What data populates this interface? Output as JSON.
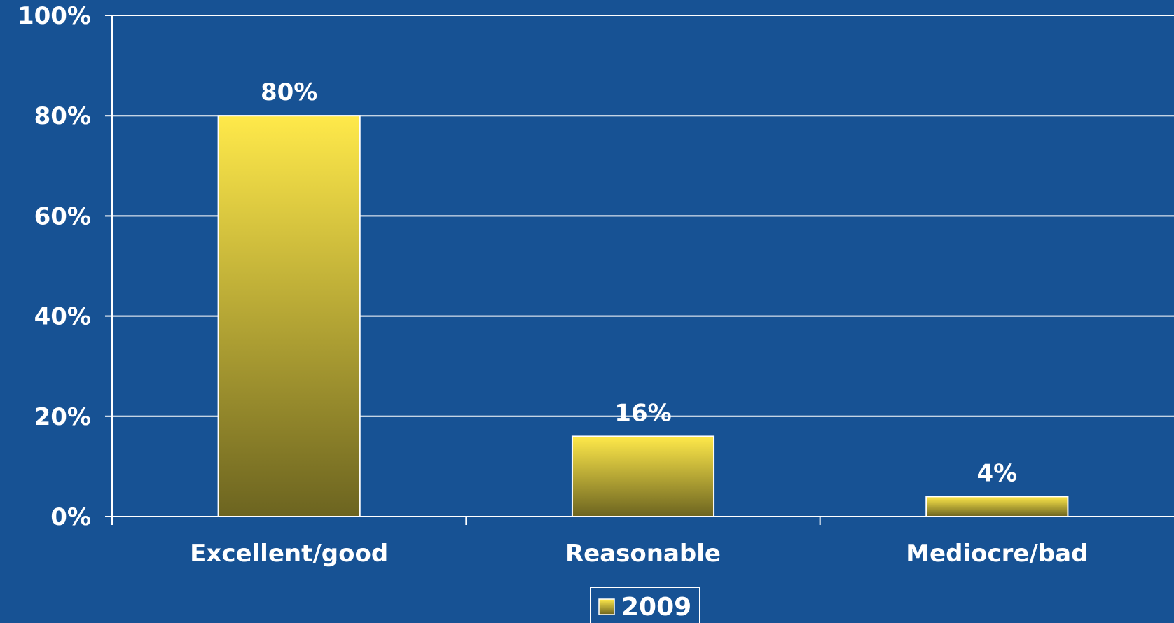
{
  "chart_data": {
    "type": "bar",
    "categories": [
      "Excellent/good",
      "Reasonable",
      "Mediocre/bad"
    ],
    "series": [
      {
        "name": "2009",
        "values": [
          80,
          16,
          4
        ],
        "value_labels": [
          "80%",
          "16%",
          "4%"
        ]
      }
    ],
    "ylim": [
      0,
      100
    ],
    "yticks": [
      0,
      20,
      40,
      60,
      80,
      100
    ],
    "ytick_labels": [
      "0%",
      "20%",
      "40%",
      "60%",
      "80%",
      "100%"
    ],
    "grid": true,
    "legend_position": "bottom-center",
    "title": "",
    "xlabel": "",
    "ylabel": ""
  },
  "colors": {
    "background": "#175294",
    "bar_top": "#ffe94a",
    "bar_bottom": "#6c6420",
    "grid": "#ffffff",
    "text": "#ffffff"
  }
}
